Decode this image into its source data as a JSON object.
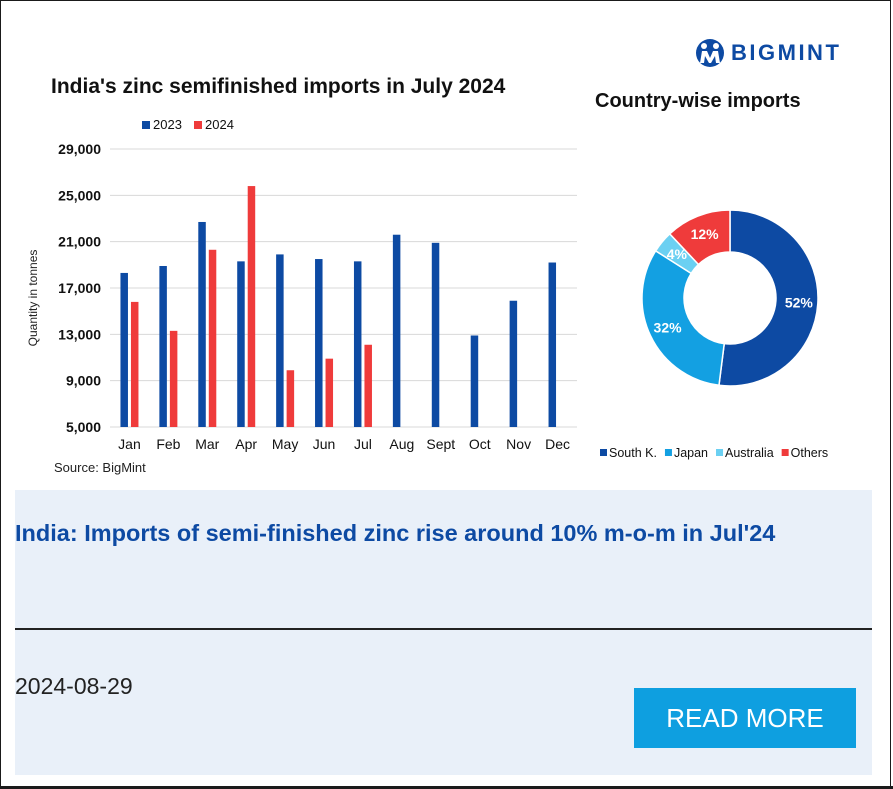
{
  "brand": {
    "name": "BIGMINT",
    "color": "#0d4aa3",
    "icon": "bigmint-logo-icon"
  },
  "bar_chart_title": "India's zinc semifinished imports in July 2024",
  "donut_title": "Country-wise imports",
  "source": "Source: BigMint",
  "chart_data": [
    {
      "type": "bar",
      "title": "India's zinc semifinished imports in July 2024",
      "ylabel": "Quantity in tonnes",
      "xlabel": "",
      "categories": [
        "Jan",
        "Feb",
        "Mar",
        "Apr",
        "May",
        "Jun",
        "Jul",
        "Aug",
        "Sept",
        "Oct",
        "Nov",
        "Dec"
      ],
      "ylim": [
        5000,
        29000
      ],
      "yticks": [
        "5,000",
        "9,000",
        "13,000",
        "17,000",
        "21,000",
        "25,000",
        "29,000"
      ],
      "ytick_values": [
        5000,
        9000,
        13000,
        17000,
        21000,
        25000,
        29000
      ],
      "grid": true,
      "legend": "top-left",
      "series": [
        {
          "name": "2023",
          "color": "#0d4aa3",
          "values": [
            18300,
            18900,
            22700,
            19300,
            19900,
            19500,
            19300,
            21600,
            20900,
            12900,
            15900,
            19200
          ]
        },
        {
          "name": "2024",
          "color": "#ef3b3b",
          "values": [
            15800,
            13300,
            20300,
            25800,
            9900,
            10900,
            12100,
            null,
            null,
            null,
            null,
            null
          ]
        }
      ]
    },
    {
      "type": "pie",
      "title": "Country-wise imports",
      "legend": "bottom",
      "slices": [
        {
          "label": "South K.",
          "value": 52,
          "text": "52%",
          "color": "#0d4aa3"
        },
        {
          "label": "Japan",
          "value": 32,
          "text": "32%",
          "color": "#13a0e2"
        },
        {
          "label": "Australia",
          "value": 4,
          "text": "4%",
          "color": "#6bd0f2"
        },
        {
          "label": "Others",
          "value": 12,
          "text": "12%",
          "color": "#ef3b3b"
        }
      ]
    }
  ],
  "article": {
    "headline": "India: Imports of semi-finished zinc rise around 10% m-o-m in Jul'24",
    "date": "2024-08-29",
    "read_more_label": "READ MORE",
    "headline_color": "#0d4aa3",
    "button_color": "#0e9fe0",
    "background": "#e9f0f9"
  }
}
